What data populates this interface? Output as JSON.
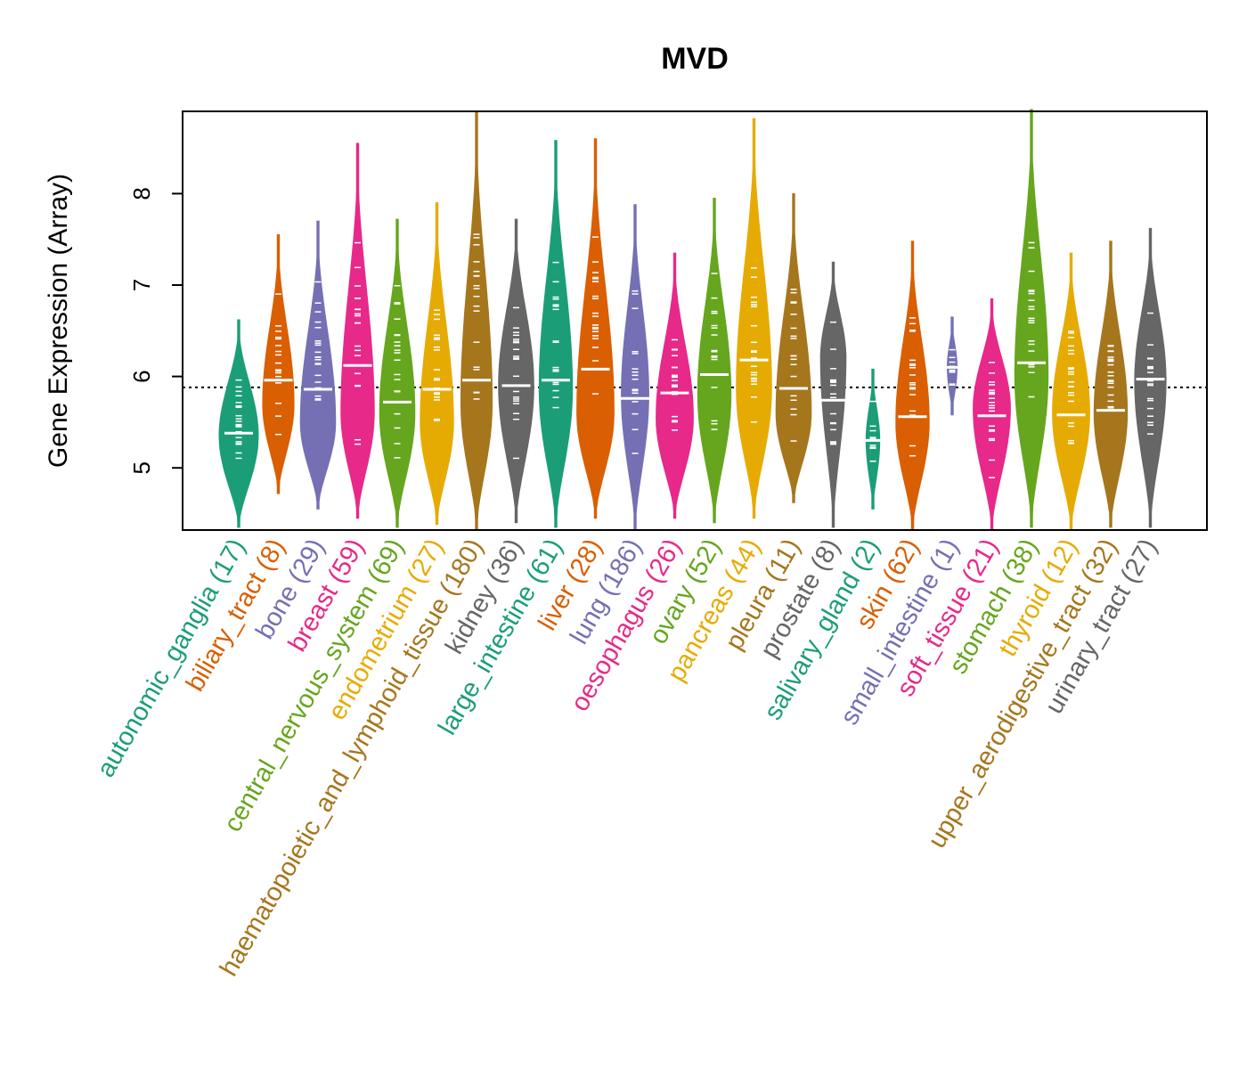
{
  "chart_data": {
    "type": "violin",
    "title": "MVD",
    "ylabel": "Gene Expression (Array)",
    "xlabel": "",
    "ylim": [
      4.32,
      8.9
    ],
    "yticks": [
      5,
      6,
      7,
      8
    ],
    "reference_line": 5.88,
    "grid": false,
    "categories": [
      {
        "label": "autonomic_ganglia (17)",
        "color": "#1b9e77",
        "min": 4.35,
        "max": 6.62,
        "median": 5.38,
        "peak": 5.35,
        "width": 1.0
      },
      {
        "label": "biliary_tract (8)",
        "color": "#d95f02",
        "min": 4.72,
        "max": 7.55,
        "median": 5.96,
        "peak": 5.7,
        "width": 0.8
      },
      {
        "label": "bone (29)",
        "color": "#7570b3",
        "min": 4.55,
        "max": 7.7,
        "median": 5.86,
        "peak": 5.5,
        "width": 0.9
      },
      {
        "label": "breast (59)",
        "color": "#e7298a",
        "min": 4.45,
        "max": 8.55,
        "median": 6.12,
        "peak": 5.6,
        "width": 0.85
      },
      {
        "label": "central_nervous_system (69)",
        "color": "#66a61e",
        "min": 4.35,
        "max": 7.72,
        "median": 5.72,
        "peak": 5.6,
        "width": 0.9
      },
      {
        "label": "endometrium (27)",
        "color": "#e6ab02",
        "min": 4.38,
        "max": 7.9,
        "median": 5.86,
        "peak": 5.5,
        "width": 0.85
      },
      {
        "label": "haematopoietic_and_lymphoid_tissue (180)",
        "color": "#a6761d",
        "min": 4.32,
        "max": 8.9,
        "median": 5.96,
        "peak": 5.7,
        "width": 0.8
      },
      {
        "label": "kidney (36)",
        "color": "#666666",
        "min": 4.4,
        "max": 7.72,
        "median": 5.9,
        "peak": 5.9,
        "width": 0.9
      },
      {
        "label": "large_intestine (61)",
        "color": "#1b9e77",
        "min": 4.35,
        "max": 8.58,
        "median": 5.96,
        "peak": 5.85,
        "width": 0.85
      },
      {
        "label": "liver (28)",
        "color": "#d95f02",
        "min": 4.45,
        "max": 8.6,
        "median": 6.08,
        "peak": 5.6,
        "width": 0.95
      },
      {
        "label": "lung (186)",
        "color": "#7570b3",
        "min": 4.32,
        "max": 7.88,
        "median": 5.76,
        "peak": 5.8,
        "width": 0.7
      },
      {
        "label": "oesophagus (26)",
        "color": "#e7298a",
        "min": 4.45,
        "max": 7.35,
        "median": 5.82,
        "peak": 5.55,
        "width": 0.95
      },
      {
        "label": "ovary (52)",
        "color": "#66a61e",
        "min": 4.4,
        "max": 7.95,
        "median": 6.02,
        "peak": 5.8,
        "width": 0.85
      },
      {
        "label": "pancreas (44)",
        "color": "#e6ab02",
        "min": 4.45,
        "max": 8.82,
        "median": 6.18,
        "peak": 5.85,
        "width": 0.9
      },
      {
        "label": "pleura (11)",
        "color": "#a6761d",
        "min": 4.62,
        "max": 8.0,
        "median": 5.87,
        "peak": 5.6,
        "width": 0.9
      },
      {
        "label": "prostate (8)",
        "color": "#666666",
        "min": 4.35,
        "max": 7.25,
        "median": 5.74,
        "peak": 6.2,
        "width": 0.65
      },
      {
        "label": "salivary_gland (2)",
        "color": "#1b9e77",
        "min": 4.55,
        "max": 6.08,
        "median": 5.3,
        "peak": 5.3,
        "width": 0.35
      },
      {
        "label": "skin (62)",
        "color": "#d95f02",
        "min": 4.32,
        "max": 7.48,
        "median": 5.56,
        "peak": 5.5,
        "width": 0.85
      },
      {
        "label": "small_intestine (1)",
        "color": "#7570b3",
        "min": 5.58,
        "max": 6.65,
        "median": 6.1,
        "peak": 6.1,
        "width": 0.25
      },
      {
        "label": "soft_tissue (21)",
        "color": "#e7298a",
        "min": 4.32,
        "max": 6.85,
        "median": 5.57,
        "peak": 5.65,
        "width": 0.95
      },
      {
        "label": "stomach (38)",
        "color": "#66a61e",
        "min": 4.35,
        "max": 8.92,
        "median": 6.15,
        "peak": 6.0,
        "width": 0.85
      },
      {
        "label": "thyroid (12)",
        "color": "#e6ab02",
        "min": 4.32,
        "max": 7.35,
        "median": 5.58,
        "peak": 5.6,
        "width": 0.95
      },
      {
        "label": "upper_aerodigestive_tract (32)",
        "color": "#a6761d",
        "min": 4.35,
        "max": 7.48,
        "median": 5.63,
        "peak": 5.6,
        "width": 0.85
      },
      {
        "label": "urinary_tract (27)",
        "color": "#666666",
        "min": 4.35,
        "max": 7.62,
        "median": 5.97,
        "peak": 5.95,
        "width": 0.8
      }
    ]
  }
}
